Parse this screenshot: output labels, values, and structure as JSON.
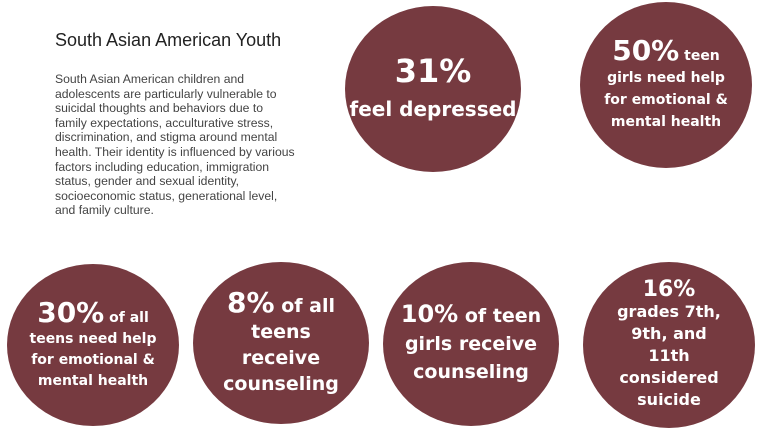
{
  "title": "South Asian American Youth",
  "body": "South Asian American children and adolescents are particularly vulnerable to suicidal thoughts and behaviors due to family expectations, acculturative stress, discrimination, and stigma around mental health. Their identity is influenced by various factors including education, immigration status, gender and sexual identity, socioeconomic status, generational level, and family culture.",
  "colors": {
    "circle": "#763a40",
    "circle_text": "#ffffff",
    "title": "#222222",
    "body": "#444444"
  },
  "stats": [
    {
      "value": "31%",
      "text": "feel depressed"
    },
    {
      "value": "50%",
      "lead": "teen",
      "text": "girls need help for emotional & mental health"
    },
    {
      "value": "30%",
      "lead": "of all",
      "text": "teens need help for emotional & mental health"
    },
    {
      "value": "8%",
      "lead": "of all",
      "text": "teens receive counseling"
    },
    {
      "value": "10%",
      "lead": "of",
      "text": "teen girls receive counseling"
    },
    {
      "value": "16%",
      "text": "grades 7th, 9th, and 11th considered suicide"
    }
  ]
}
